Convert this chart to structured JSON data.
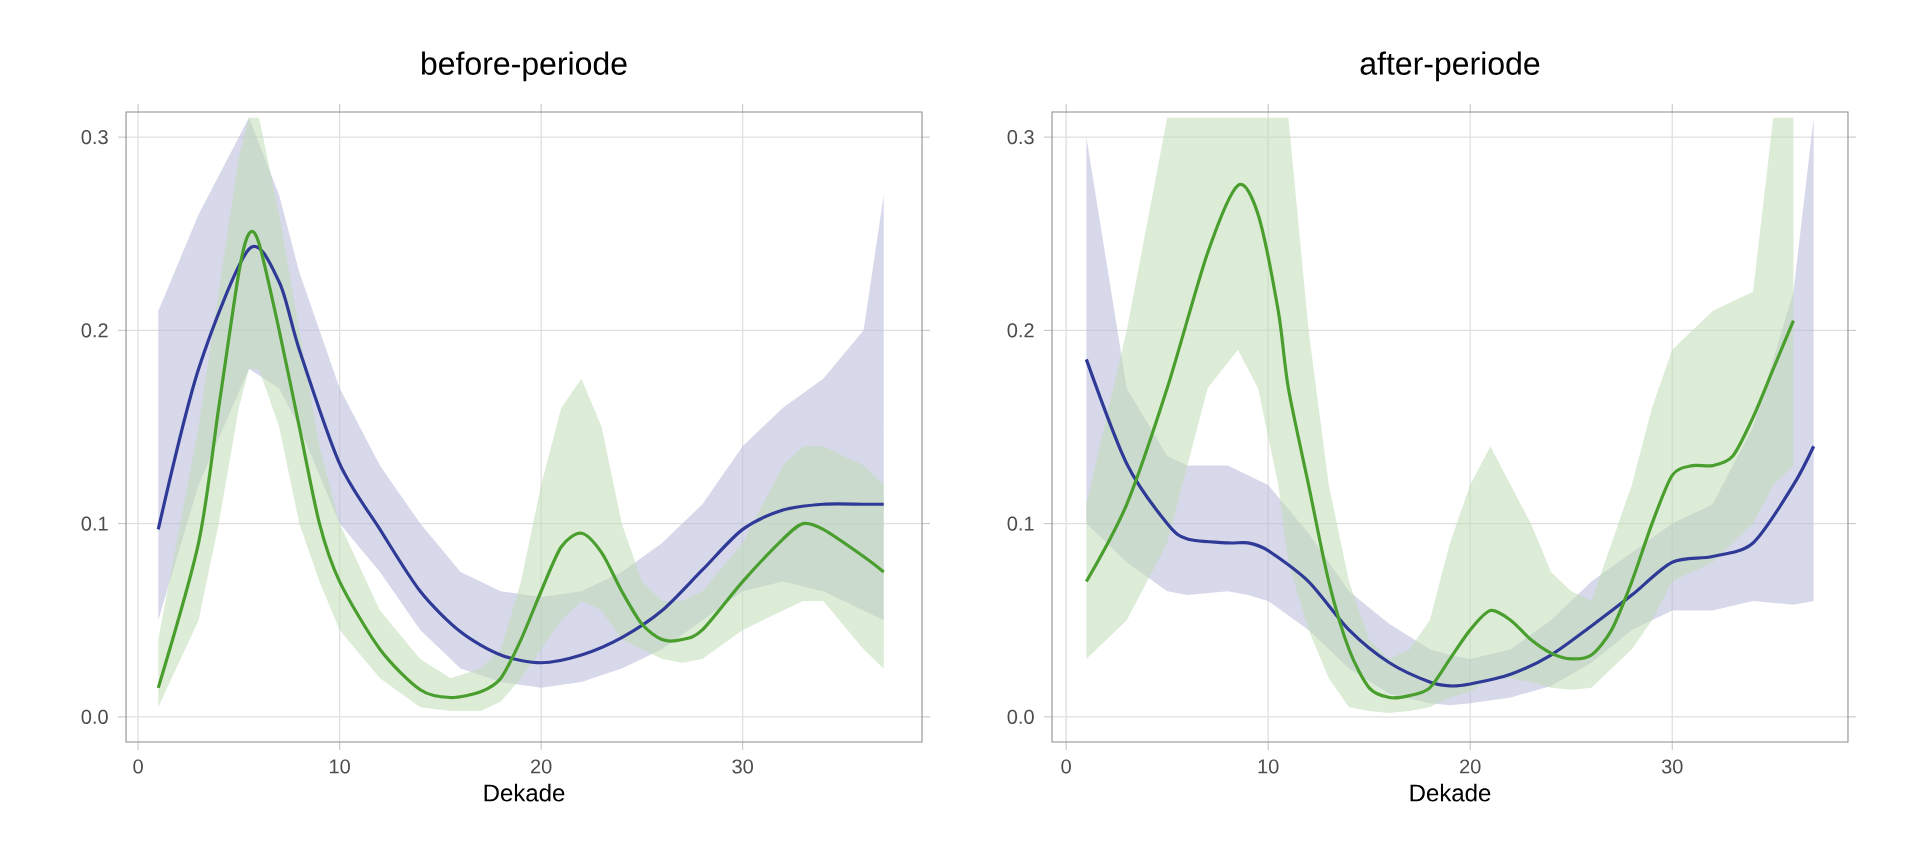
{
  "chart_data": [
    {
      "type": "line",
      "title": "before-periode",
      "xlabel": "Dekade",
      "xlim": [
        -0.6,
        38.9
      ],
      "ylim": [
        -0.013,
        0.313
      ],
      "xticks": [
        0,
        10,
        20,
        30
      ],
      "yticks": [
        {
          "value": 0,
          "label": "0.0"
        },
        {
          "value": 0.1,
          "label": "0.1"
        },
        {
          "value": 0.2,
          "label": "0.2"
        },
        {
          "value": 0.3,
          "label": "0.3"
        }
      ],
      "grid": true,
      "series": [
        {
          "color": "#2e3a96",
          "x": [
            1,
            3,
            5.5,
            7,
            8,
            10,
            12,
            14,
            16,
            18,
            20,
            22,
            24,
            26,
            28,
            30,
            32,
            34,
            36,
            37
          ],
          "values": [
            0.097,
            0.18,
            0.242,
            0.225,
            0.19,
            0.131,
            0.097,
            0.065,
            0.044,
            0.032,
            0.028,
            0.032,
            0.041,
            0.055,
            0.076,
            0.097,
            0.107,
            0.11,
            0.11,
            0.11
          ],
          "lower": [
            0.05,
            0.12,
            0.18,
            0.17,
            0.15,
            0.1,
            0.075,
            0.045,
            0.025,
            0.018,
            0.015,
            0.018,
            0.025,
            0.035,
            0.05,
            0.065,
            0.07,
            0.065,
            0.055,
            0.05
          ],
          "upper": [
            0.21,
            0.26,
            0.31,
            0.27,
            0.23,
            0.17,
            0.13,
            0.1,
            0.075,
            0.065,
            0.062,
            0.065,
            0.075,
            0.09,
            0.11,
            0.14,
            0.16,
            0.175,
            0.2,
            0.27
          ]
        },
        {
          "color": "#4a9e2e",
          "x": [
            1,
            3,
            4,
            5,
            5.5,
            6,
            7,
            8,
            9,
            10,
            12,
            14,
            15.5,
            17,
            18,
            19,
            20,
            21,
            22,
            23,
            24,
            25,
            26,
            27,
            28,
            30,
            32,
            33,
            34,
            36,
            37
          ],
          "values": [
            0.015,
            0.09,
            0.16,
            0.23,
            0.25,
            0.245,
            0.2,
            0.15,
            0.1,
            0.07,
            0.035,
            0.014,
            0.01,
            0.013,
            0.02,
            0.04,
            0.065,
            0.088,
            0.095,
            0.085,
            0.065,
            0.048,
            0.04,
            0.04,
            0.045,
            0.07,
            0.092,
            0.1,
            0.097,
            0.083,
            0.075
          ],
          "lower": [
            0.005,
            0.05,
            0.1,
            0.16,
            0.18,
            0.18,
            0.15,
            0.1,
            0.07,
            0.045,
            0.02,
            0.005,
            0.003,
            0.003,
            0.008,
            0.02,
            0.035,
            0.05,
            0.06,
            0.055,
            0.04,
            0.035,
            0.03,
            0.028,
            0.03,
            0.045,
            0.055,
            0.06,
            0.06,
            0.035,
            0.025
          ],
          "upper": [
            0.04,
            0.15,
            0.22,
            0.29,
            0.31,
            0.31,
            0.26,
            0.2,
            0.14,
            0.1,
            0.055,
            0.03,
            0.02,
            0.025,
            0.035,
            0.07,
            0.12,
            0.16,
            0.175,
            0.15,
            0.1,
            0.07,
            0.06,
            0.06,
            0.065,
            0.09,
            0.13,
            0.14,
            0.14,
            0.13,
            0.12
          ]
        }
      ]
    },
    {
      "type": "line",
      "title": "after-periode",
      "xlabel": "Dekade",
      "xlim": [
        -0.7,
        38.7
      ],
      "ylim": [
        -0.013,
        0.313
      ],
      "xticks": [
        0,
        10,
        20,
        30
      ],
      "yticks": [
        {
          "value": 0,
          "label": "0.0"
        },
        {
          "value": 0.1,
          "label": "0.1"
        },
        {
          "value": 0.2,
          "label": "0.2"
        },
        {
          "value": 0.3,
          "label": "0.3"
        }
      ],
      "grid": true,
      "series": [
        {
          "color": "#2e3a96",
          "x": [
            1,
            3,
            5,
            6,
            8,
            9,
            10,
            12,
            14,
            16,
            18,
            19,
            20,
            22,
            24,
            26,
            28,
            30,
            32,
            34,
            36,
            37
          ],
          "values": [
            0.185,
            0.131,
            0.1,
            0.092,
            0.09,
            0.09,
            0.086,
            0.07,
            0.045,
            0.028,
            0.018,
            0.016,
            0.017,
            0.022,
            0.032,
            0.047,
            0.063,
            0.08,
            0.083,
            0.09,
            0.12,
            0.14
          ],
          "lower": [
            0.1,
            0.08,
            0.065,
            0.063,
            0.065,
            0.063,
            0.06,
            0.045,
            0.025,
            0.012,
            0.007,
            0.006,
            0.007,
            0.01,
            0.016,
            0.028,
            0.045,
            0.055,
            0.055,
            0.06,
            0.058,
            0.06
          ],
          "upper": [
            0.3,
            0.17,
            0.135,
            0.13,
            0.13,
            0.125,
            0.12,
            0.095,
            0.065,
            0.048,
            0.035,
            0.032,
            0.03,
            0.035,
            0.05,
            0.07,
            0.085,
            0.1,
            0.11,
            0.15,
            0.22,
            0.31
          ]
        },
        {
          "color": "#4a9e2e",
          "x": [
            1,
            3,
            5,
            7,
            8.5,
            9.5,
            10.5,
            11,
            12,
            13,
            14,
            15,
            16,
            17,
            18,
            19,
            20,
            21,
            22,
            23,
            24,
            25,
            26,
            27,
            28,
            29,
            30,
            31,
            32,
            33,
            34,
            35,
            36
          ],
          "values": [
            0.07,
            0.11,
            0.17,
            0.24,
            0.275,
            0.26,
            0.21,
            0.17,
            0.12,
            0.07,
            0.035,
            0.015,
            0.01,
            0.011,
            0.015,
            0.03,
            0.045,
            0.055,
            0.05,
            0.04,
            0.033,
            0.03,
            0.032,
            0.045,
            0.07,
            0.1,
            0.125,
            0.13,
            0.13,
            0.135,
            0.155,
            0.18,
            0.205
          ],
          "lower": [
            0.03,
            0.05,
            0.09,
            0.17,
            0.19,
            0.17,
            0.12,
            0.08,
            0.045,
            0.02,
            0.005,
            0.003,
            0.002,
            0.003,
            0.005,
            0.01,
            0.013,
            0.02,
            0.02,
            0.018,
            0.015,
            0.014,
            0.015,
            0.025,
            0.035,
            0.05,
            0.07,
            0.075,
            0.08,
            0.09,
            0.1,
            0.12,
            0.13
          ],
          "upper": [
            0.11,
            0.2,
            0.31,
            0.31,
            0.31,
            0.31,
            0.31,
            0.31,
            0.2,
            0.12,
            0.07,
            0.04,
            0.03,
            0.035,
            0.05,
            0.09,
            0.12,
            0.14,
            0.12,
            0.1,
            0.075,
            0.065,
            0.06,
            0.09,
            0.12,
            0.16,
            0.19,
            0.2,
            0.21,
            0.215,
            0.22,
            0.31,
            0.31
          ]
        }
      ]
    }
  ]
}
